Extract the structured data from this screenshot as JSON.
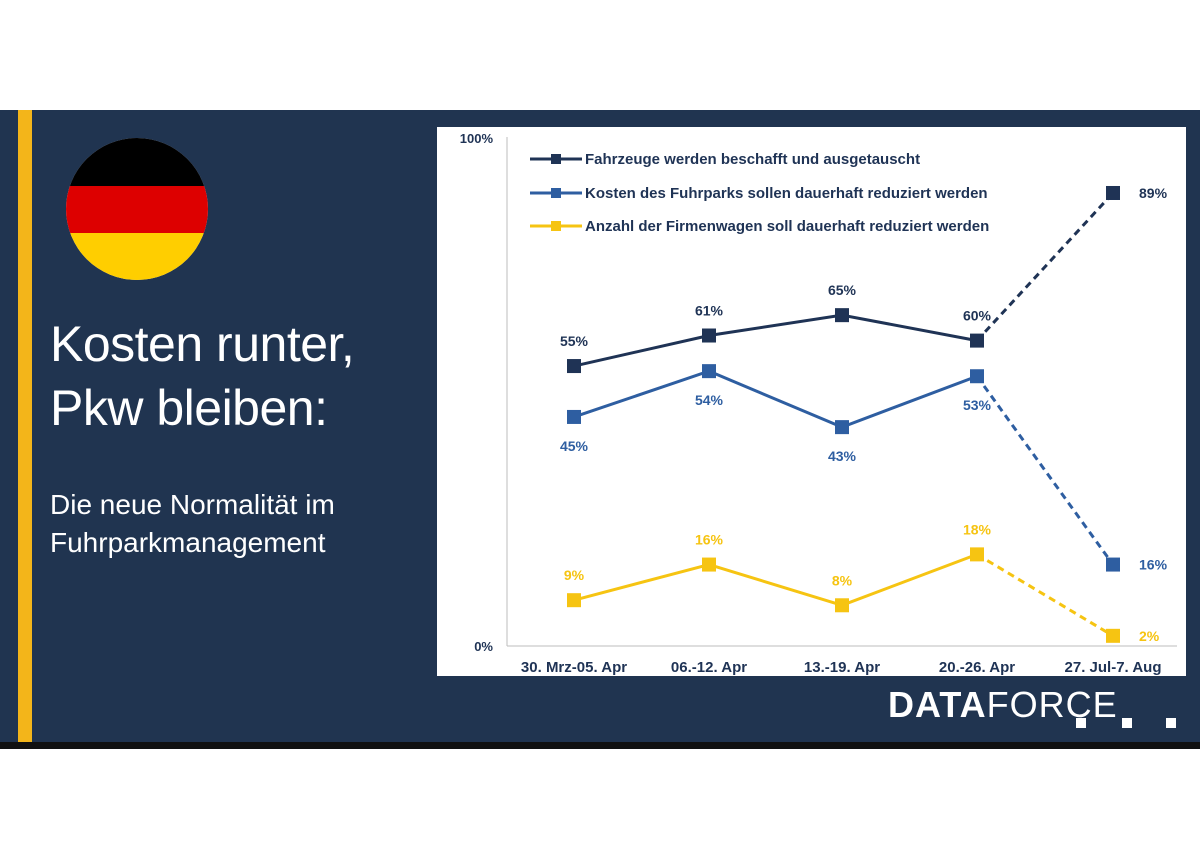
{
  "headline": {
    "line1": "Kosten runter,",
    "line2": "Pkw bleiben:"
  },
  "subheadline": {
    "line1": "Die neue Normalität im",
    "line2": "Fuhrparkmanagement"
  },
  "flag": {
    "name": "germany-flag",
    "colors": [
      "#000000",
      "#dd0000",
      "#ffce00"
    ]
  },
  "logo": {
    "part1": "DATA",
    "part2": "FORCE"
  },
  "colors": {
    "background": "#203450",
    "accent": "#f3b51a",
    "series_dark": "#1f3355",
    "series_blue": "#2e5ea1",
    "series_yellow": "#f6c412"
  },
  "chart_data": {
    "type": "line",
    "categories": [
      "30. Mrz-05. Apr",
      "06.-12. Apr",
      "13.-19. Apr",
      "20.-26. Apr",
      "27. Jul-7. Aug"
    ],
    "ylim": [
      0,
      100
    ],
    "y_tick_labels": [
      "0%",
      "100%"
    ],
    "grid": false,
    "legend_position": "top-left",
    "last_segment_style": "dashed",
    "series": [
      {
        "name": "Fahrzeuge werden beschafft und ausgetauscht",
        "color": "#1f3355",
        "values": [
          55,
          61,
          65,
          60,
          89
        ],
        "labels": [
          "55%",
          "61%",
          "65%",
          "60%",
          "89%"
        ],
        "label_side": [
          "above",
          "above",
          "above",
          "above",
          "right"
        ]
      },
      {
        "name": "Kosten des Fuhrparks sollen dauerhaft reduziert werden",
        "color": "#2e5ea1",
        "values": [
          45,
          54,
          43,
          53,
          16
        ],
        "labels": [
          "45%",
          "54%",
          "43%",
          "53%",
          "16%"
        ],
        "label_side": [
          "below",
          "below",
          "below",
          "below",
          "right"
        ]
      },
      {
        "name": "Anzahl der Firmenwagen soll dauerhaft reduziert werden",
        "color": "#f6c412",
        "values": [
          9,
          16,
          8,
          18,
          2
        ],
        "labels": [
          "9%",
          "16%",
          "8%",
          "18%",
          "2%"
        ],
        "label_side": [
          "above",
          "above",
          "above",
          "above",
          "right"
        ]
      }
    ]
  }
}
